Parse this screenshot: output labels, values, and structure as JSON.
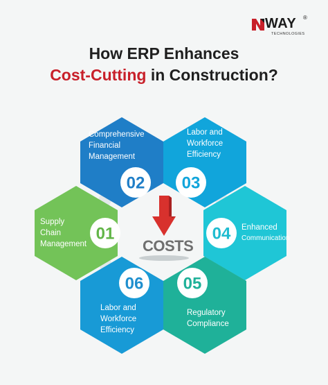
{
  "logo": {
    "name": "WAY",
    "mark": "N",
    "registered": "®",
    "subtitle": "TECHNOLOGIES"
  },
  "title": {
    "line1": "How ERP Enhances",
    "line2_accent": "Cost-Cutting",
    "line2_rest": " in Construction?"
  },
  "center": {
    "label": "COSTS"
  },
  "hexagons": [
    {
      "number": "01",
      "lines": [
        "Supply",
        "Chain",
        "Management"
      ],
      "color": "#73c358",
      "number_color": "#62b548"
    },
    {
      "number": "02",
      "lines": [
        "Comprehensive",
        "Financial",
        "Management"
      ],
      "color": "#1f7ec7",
      "number_color": "#1f7ec7"
    },
    {
      "number": "03",
      "lines": [
        "Labor and",
        "Workforce",
        "Efficiency"
      ],
      "color": "#11a5db",
      "number_color": "#11a5db"
    },
    {
      "number": "04",
      "lines": [
        "Enhanced",
        "Communication"
      ],
      "color": "#1fc6d6",
      "number_color": "#1fbcd0"
    },
    {
      "number": "05",
      "lines": [
        "Regulatory",
        "Compliance"
      ],
      "color": "#1fb199",
      "number_color": "#1fb199"
    },
    {
      "number": "06",
      "lines": [
        "Labor and",
        "Workforce",
        "Efficiency"
      ],
      "color": "#189ad6",
      "number_color": "#1f8fce"
    }
  ],
  "colors": {
    "accent_red": "#c8202a",
    "title_text": "#1f1f1f",
    "ring": "#e3e8ea",
    "arrow_red": "#d8312d"
  }
}
